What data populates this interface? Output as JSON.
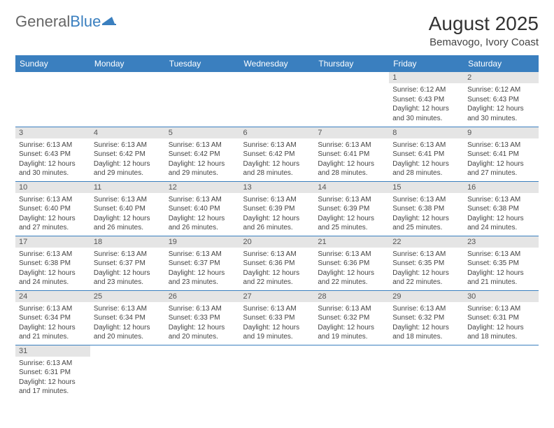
{
  "logo": {
    "part1": "General",
    "part2": "Blue"
  },
  "title": "August 2025",
  "location": "Bemavogo, Ivory Coast",
  "colors": {
    "header_bg": "#3a7fbf",
    "header_text": "#ffffff",
    "daynum_bg": "#e5e5e5",
    "row_border": "#3a7fbf",
    "text": "#444444"
  },
  "weekdays": [
    "Sunday",
    "Monday",
    "Tuesday",
    "Wednesday",
    "Thursday",
    "Friday",
    "Saturday"
  ],
  "weeks": [
    [
      null,
      null,
      null,
      null,
      null,
      {
        "n": "1",
        "sr": "6:12 AM",
        "ss": "6:43 PM",
        "dl": "12 hours and 30 minutes."
      },
      {
        "n": "2",
        "sr": "6:12 AM",
        "ss": "6:43 PM",
        "dl": "12 hours and 30 minutes."
      }
    ],
    [
      {
        "n": "3",
        "sr": "6:13 AM",
        "ss": "6:43 PM",
        "dl": "12 hours and 30 minutes."
      },
      {
        "n": "4",
        "sr": "6:13 AM",
        "ss": "6:42 PM",
        "dl": "12 hours and 29 minutes."
      },
      {
        "n": "5",
        "sr": "6:13 AM",
        "ss": "6:42 PM",
        "dl": "12 hours and 29 minutes."
      },
      {
        "n": "6",
        "sr": "6:13 AM",
        "ss": "6:42 PM",
        "dl": "12 hours and 28 minutes."
      },
      {
        "n": "7",
        "sr": "6:13 AM",
        "ss": "6:41 PM",
        "dl": "12 hours and 28 minutes."
      },
      {
        "n": "8",
        "sr": "6:13 AM",
        "ss": "6:41 PM",
        "dl": "12 hours and 28 minutes."
      },
      {
        "n": "9",
        "sr": "6:13 AM",
        "ss": "6:41 PM",
        "dl": "12 hours and 27 minutes."
      }
    ],
    [
      {
        "n": "10",
        "sr": "6:13 AM",
        "ss": "6:40 PM",
        "dl": "12 hours and 27 minutes."
      },
      {
        "n": "11",
        "sr": "6:13 AM",
        "ss": "6:40 PM",
        "dl": "12 hours and 26 minutes."
      },
      {
        "n": "12",
        "sr": "6:13 AM",
        "ss": "6:40 PM",
        "dl": "12 hours and 26 minutes."
      },
      {
        "n": "13",
        "sr": "6:13 AM",
        "ss": "6:39 PM",
        "dl": "12 hours and 26 minutes."
      },
      {
        "n": "14",
        "sr": "6:13 AM",
        "ss": "6:39 PM",
        "dl": "12 hours and 25 minutes."
      },
      {
        "n": "15",
        "sr": "6:13 AM",
        "ss": "6:38 PM",
        "dl": "12 hours and 25 minutes."
      },
      {
        "n": "16",
        "sr": "6:13 AM",
        "ss": "6:38 PM",
        "dl": "12 hours and 24 minutes."
      }
    ],
    [
      {
        "n": "17",
        "sr": "6:13 AM",
        "ss": "6:38 PM",
        "dl": "12 hours and 24 minutes."
      },
      {
        "n": "18",
        "sr": "6:13 AM",
        "ss": "6:37 PM",
        "dl": "12 hours and 23 minutes."
      },
      {
        "n": "19",
        "sr": "6:13 AM",
        "ss": "6:37 PM",
        "dl": "12 hours and 23 minutes."
      },
      {
        "n": "20",
        "sr": "6:13 AM",
        "ss": "6:36 PM",
        "dl": "12 hours and 22 minutes."
      },
      {
        "n": "21",
        "sr": "6:13 AM",
        "ss": "6:36 PM",
        "dl": "12 hours and 22 minutes."
      },
      {
        "n": "22",
        "sr": "6:13 AM",
        "ss": "6:35 PM",
        "dl": "12 hours and 22 minutes."
      },
      {
        "n": "23",
        "sr": "6:13 AM",
        "ss": "6:35 PM",
        "dl": "12 hours and 21 minutes."
      }
    ],
    [
      {
        "n": "24",
        "sr": "6:13 AM",
        "ss": "6:34 PM",
        "dl": "12 hours and 21 minutes."
      },
      {
        "n": "25",
        "sr": "6:13 AM",
        "ss": "6:34 PM",
        "dl": "12 hours and 20 minutes."
      },
      {
        "n": "26",
        "sr": "6:13 AM",
        "ss": "6:33 PM",
        "dl": "12 hours and 20 minutes."
      },
      {
        "n": "27",
        "sr": "6:13 AM",
        "ss": "6:33 PM",
        "dl": "12 hours and 19 minutes."
      },
      {
        "n": "28",
        "sr": "6:13 AM",
        "ss": "6:32 PM",
        "dl": "12 hours and 19 minutes."
      },
      {
        "n": "29",
        "sr": "6:13 AM",
        "ss": "6:32 PM",
        "dl": "12 hours and 18 minutes."
      },
      {
        "n": "30",
        "sr": "6:13 AM",
        "ss": "6:31 PM",
        "dl": "12 hours and 18 minutes."
      }
    ],
    [
      {
        "n": "31",
        "sr": "6:13 AM",
        "ss": "6:31 PM",
        "dl": "12 hours and 17 minutes."
      },
      null,
      null,
      null,
      null,
      null,
      null
    ]
  ],
  "labels": {
    "sunrise": "Sunrise:",
    "sunset": "Sunset:",
    "daylight": "Daylight:"
  }
}
